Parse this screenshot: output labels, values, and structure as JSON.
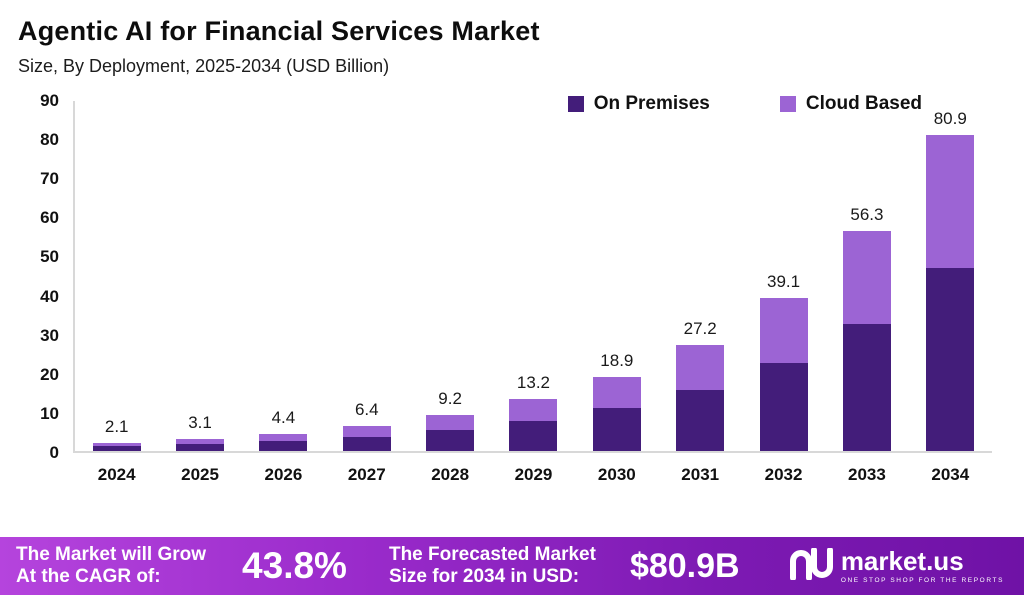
{
  "header": {
    "title": "Agentic AI for Financial Services Market",
    "subtitle": "Size, By Deployment, 2025-2034 (USD Billion)"
  },
  "chart_data": {
    "type": "bar",
    "stacked": true,
    "title": "Agentic AI for Financial Services Market",
    "subtitle": "Size, By Deployment, 2025-2034 (USD Billion)",
    "xlabel": "",
    "ylabel": "USD Billion",
    "categories": [
      "2024",
      "2025",
      "2026",
      "2027",
      "2028",
      "2029",
      "2030",
      "2031",
      "2032",
      "2033",
      "2034"
    ],
    "series": [
      {
        "name": "On Premises",
        "color": "#431d7a",
        "values": [
          1.2,
          1.8,
          2.6,
          3.7,
          5.3,
          7.6,
          10.9,
          15.7,
          22.6,
          32.5,
          46.8
        ]
      },
      {
        "name": "Cloud Based",
        "color": "#9c64d4",
        "values": [
          0.9,
          1.3,
          1.8,
          2.7,
          3.9,
          5.6,
          8.0,
          11.5,
          16.5,
          23.8,
          34.1
        ]
      }
    ],
    "totals": [
      2.1,
      3.1,
      4.4,
      6.4,
      9.2,
      13.2,
      18.9,
      27.2,
      39.1,
      56.3,
      80.9
    ],
    "ylim": [
      0,
      90
    ],
    "ytick_step": 10,
    "grid": false,
    "legend_position": "top-right"
  },
  "footer": {
    "cagr_label_lines": [
      "The Market will Grow",
      "At the CAGR of:"
    ],
    "cagr_value": "43.8%",
    "forecast_label_lines": [
      "The Forecasted Market",
      "Size for 2034 in USD:"
    ],
    "forecast_value": "$80.9B",
    "brand": "market.us",
    "brand_tagline": "ONE STOP SHOP FOR THE REPORTS"
  },
  "colors": {
    "on_premises": "#431d7a",
    "cloud_based": "#9c64d4",
    "banner_start": "#b544dd",
    "banner_end": "#6f12a6",
    "axis": "#d8d8d8"
  }
}
